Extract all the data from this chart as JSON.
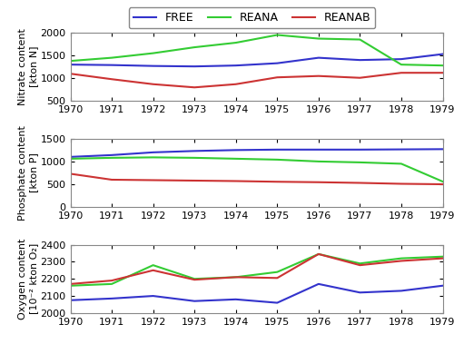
{
  "years": [
    1970,
    1971,
    1972,
    1973,
    1974,
    1975,
    1976,
    1977,
    1978,
    1979
  ],
  "nitrate": {
    "FREE": [
      1300,
      1290,
      1270,
      1260,
      1280,
      1330,
      1450,
      1400,
      1420,
      1530
    ],
    "REANA": [
      1380,
      1450,
      1550,
      1680,
      1780,
      1950,
      1870,
      1850,
      1300,
      1280
    ],
    "REANAB": [
      1100,
      980,
      870,
      800,
      870,
      1020,
      1050,
      1010,
      1120,
      1120
    ]
  },
  "nitrate_ylim": [
    500,
    2000
  ],
  "nitrate_yticks": [
    500,
    1000,
    1500,
    2000
  ],
  "phosphate": {
    "FREE": [
      1100,
      1140,
      1200,
      1230,
      1250,
      1260,
      1260,
      1260,
      1265,
      1270
    ],
    "REANA": [
      1060,
      1080,
      1090,
      1080,
      1060,
      1040,
      1000,
      980,
      950,
      560
    ],
    "REANAB": [
      730,
      600,
      590,
      580,
      570,
      555,
      545,
      530,
      510,
      500
    ]
  },
  "phosphate_ylim": [
    0,
    1500
  ],
  "phosphate_yticks": [
    0,
    500,
    1000,
    1500
  ],
  "oxygen": {
    "FREE": [
      2075,
      2085,
      2100,
      2070,
      2080,
      2060,
      2170,
      2120,
      2130,
      2160
    ],
    "REANA": [
      2160,
      2170,
      2280,
      2200,
      2210,
      2240,
      2345,
      2290,
      2320,
      2330
    ],
    "REANAB": [
      2170,
      2190,
      2250,
      2195,
      2210,
      2205,
      2345,
      2280,
      2305,
      2320
    ]
  },
  "oxygen_ylim": [
    2000,
    2400
  ],
  "oxygen_yticks": [
    2000,
    2100,
    2200,
    2300,
    2400
  ],
  "colors": {
    "FREE": "#3333cc",
    "REANA": "#33cc33",
    "REANAB": "#cc3333"
  },
  "legend_labels": [
    "FREE",
    "REANA",
    "REANAB"
  ],
  "panel_ylabels": [
    "Nitrate content\n[kton N]",
    "Phosphate content\n[kton P]",
    "Oxygen content\n[10⁻² kton O₂]"
  ],
  "linewidth": 1.5,
  "panel_bg": "#ffffff",
  "fig_bg": "#ffffff",
  "tick_fontsize": 8,
  "ylabel_fontsize": 8,
  "legend_fontsize": 9
}
